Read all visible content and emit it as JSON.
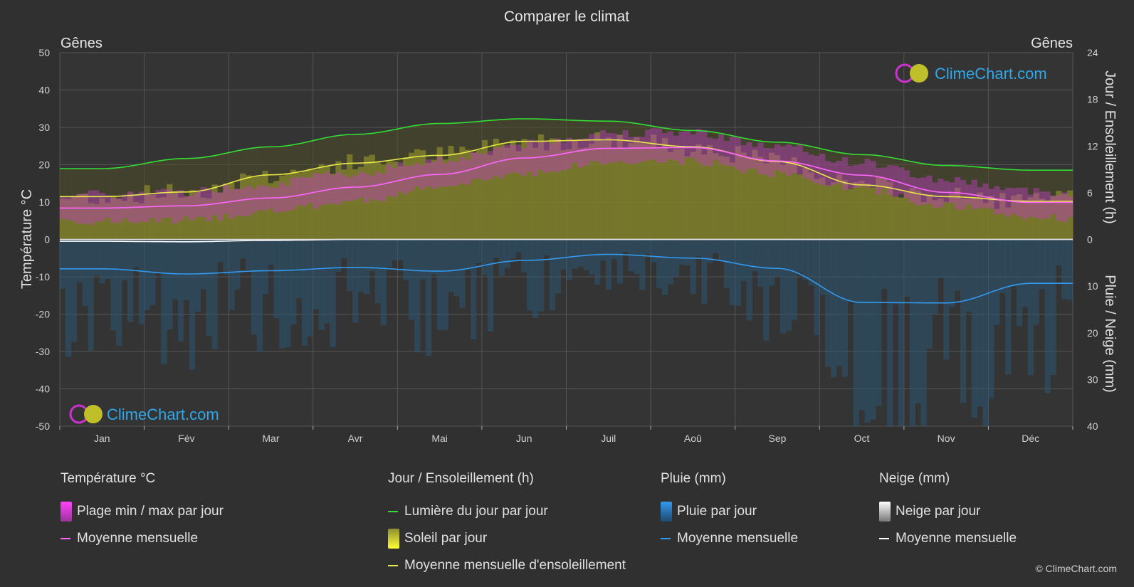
{
  "chart_data": {
    "type": "area",
    "title": "Comparer le climat",
    "location_left": "Gênes",
    "location_right": "Gênes",
    "ylabel_left": "Température °C",
    "ylabel_right_top": "Jour / Ensoleillement (h)",
    "ylabel_right_bottom": "Pluie / Neige (mm)",
    "ylim_left": [
      -50,
      50
    ],
    "left_ticks": [
      "50",
      "40",
      "30",
      "20",
      "10",
      "0",
      "-10",
      "-20",
      "-30",
      "-40",
      "-50"
    ],
    "right_top_ticks": [
      "24",
      "18",
      "12",
      "6",
      "0"
    ],
    "right_bottom_ticks": [
      "10",
      "20",
      "30",
      "40"
    ],
    "grid": true,
    "categories": [
      "Jan",
      "Fév",
      "Mar",
      "Avr",
      "Mai",
      "Jun",
      "Juil",
      "Aoû",
      "Sep",
      "Oct",
      "Nov",
      "Déc"
    ],
    "series": [
      {
        "name": "Lumière du jour par jour",
        "unit": "h",
        "color": "#33dd33",
        "values": [
          9.1,
          10.4,
          11.9,
          13.5,
          14.9,
          15.5,
          15.2,
          14.0,
          12.5,
          10.9,
          9.5,
          8.9
        ]
      },
      {
        "name": "Moyenne mensuelle d'ensoleillement",
        "unit": "h",
        "color": "#e8e84a",
        "values": [
          5.5,
          6.1,
          8.3,
          9.8,
          10.8,
          12.6,
          12.8,
          11.9,
          10.0,
          7.0,
          5.5,
          4.9
        ]
      },
      {
        "name": "Moyenne mensuelle",
        "group": "Température °C",
        "unit": "°C",
        "color": "#ff66ff",
        "values": [
          8.4,
          9.0,
          11.1,
          14.0,
          17.4,
          21.8,
          24.4,
          24.6,
          21.0,
          17.2,
          12.6,
          9.9
        ]
      },
      {
        "name": "Moyenne mensuelle",
        "group": "Pluie (mm)",
        "unit": "mm",
        "color": "#3399ee",
        "values": [
          6.3,
          7.4,
          6.7,
          6.0,
          6.8,
          4.5,
          3.2,
          4.0,
          6.2,
          13.5,
          13.6,
          9.4
        ]
      },
      {
        "name": "Moyenne mensuelle",
        "group": "Neige (mm)",
        "unit": "mm",
        "color": "#ffffff",
        "values": [
          0.4,
          0.5,
          0.2,
          0.0,
          0.0,
          0.0,
          0.0,
          0.0,
          0.0,
          0.0,
          0.0,
          0.0
        ]
      }
    ],
    "temp_range_daily": {
      "name": "Plage min / max par jour",
      "min": [
        4.8,
        5.2,
        7.5,
        10.3,
        13.9,
        17.8,
        20.6,
        20.9,
        17.6,
        13.5,
        9.0,
        6.0
      ],
      "max": [
        12.0,
        12.8,
        15.0,
        17.8,
        21.3,
        25.5,
        28.6,
        28.8,
        24.8,
        20.6,
        16.0,
        13.0
      ]
    }
  },
  "legend": {
    "temp": {
      "title": "Température °C",
      "items": [
        "Plage min / max par jour",
        "Moyenne mensuelle"
      ]
    },
    "sun": {
      "title": "Jour / Ensoleillement (h)",
      "items": [
        "Lumière du jour par jour",
        "Soleil par jour",
        "Moyenne mensuelle d'ensoleillement"
      ]
    },
    "rain": {
      "title": "Pluie (mm)",
      "items": [
        "Pluie par jour",
        "Moyenne mensuelle"
      ]
    },
    "snow": {
      "title": "Neige (mm)",
      "items": [
        "Neige par jour",
        "Moyenne mensuelle"
      ]
    }
  },
  "brand": {
    "name": "ClimeChart.com",
    "copyright": "© ClimeChart.com"
  },
  "colors": {
    "background": "#303030",
    "grid": "#5a5a5a",
    "daylight": "#33dd33",
    "sunshine": "#e8e84a",
    "temperature": "#ff66ff",
    "rain": "#3399ee",
    "snow": "#ffffff",
    "brand": "#2fa7e8"
  }
}
